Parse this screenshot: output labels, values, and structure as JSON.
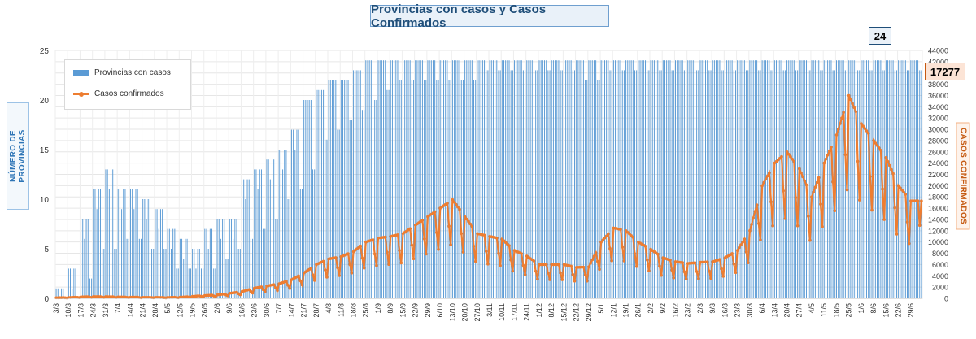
{
  "chart_data": {
    "type": "bar",
    "title": "Provincias con casos y Casos Confirmados",
    "ylabel_left": "NÚMERO DE PROVINCIAS",
    "ylabel_right": "CASOS CONFIRMADOS",
    "ylim_left": [
      0,
      25
    ],
    "ylim_right": [
      0,
      44000
    ],
    "yticks_left": [
      0,
      5,
      10,
      15,
      20,
      25
    ],
    "yticks_right": [
      0,
      2000,
      4000,
      6000,
      8000,
      10000,
      12000,
      14000,
      16000,
      18000,
      20000,
      22000,
      24000,
      26000,
      28000,
      30000,
      32000,
      34000,
      36000,
      38000,
      40000,
      42000,
      44000
    ],
    "x_tick_labels": [
      "3/3",
      "10/3",
      "17/3",
      "24/3",
      "31/3",
      "7/4",
      "14/4",
      "21/4",
      "28/4",
      "5/5",
      "12/5",
      "19/5",
      "26/5",
      "2/6",
      "9/6",
      "16/6",
      "23/6",
      "30/6",
      "7/7",
      "14/7",
      "21/7",
      "28/7",
      "4/8",
      "11/8",
      "18/8",
      "25/8",
      "1/9",
      "8/9",
      "15/9",
      "22/9",
      "29/9",
      "6/10",
      "13/10",
      "20/10",
      "27/10",
      "3/11",
      "10/11",
      "17/11",
      "24/11",
      "1/12",
      "8/12",
      "15/12",
      "22/12",
      "29/12",
      "5/1",
      "12/1",
      "19/1",
      "26/1",
      "2/2",
      "9/2",
      "16/2",
      "23/2",
      "2/3",
      "9/3",
      "16/3",
      "23/3",
      "30/3",
      "6/4",
      "13/4",
      "20/4",
      "27/4",
      "4/5",
      "11/5",
      "18/5",
      "25/5",
      "1/6",
      "8/6",
      "15/6",
      "22/6",
      "29/6"
    ],
    "series": [
      {
        "name": "Provincias con casos",
        "type": "bar",
        "axis": "left",
        "color": "#5b9bd5",
        "weekly_values": [
          1,
          3,
          8,
          11,
          13,
          11,
          11,
          10,
          9,
          7,
          6,
          5,
          7,
          8,
          8,
          12,
          13,
          14,
          15,
          17,
          20,
          21,
          22,
          22,
          23,
          24,
          24,
          24,
          24,
          24,
          24,
          24,
          24,
          24,
          24,
          24,
          24,
          24,
          24,
          24,
          24,
          24,
          24,
          24,
          24,
          24,
          24,
          24,
          24,
          24,
          24,
          24,
          24,
          24,
          24,
          24,
          24,
          24,
          24,
          24,
          24,
          24,
          24,
          24,
          24,
          24,
          24,
          24,
          24,
          24
        ],
        "weekly_dips": [
          0,
          0,
          2,
          5,
          5,
          6,
          6,
          5,
          5,
          3,
          3,
          3,
          3,
          4,
          5,
          6,
          7,
          8,
          10,
          11,
          13,
          16,
          17,
          18,
          19,
          20,
          21,
          22,
          22,
          22,
          22,
          22,
          22,
          22,
          23,
          23,
          23,
          23,
          23,
          23,
          23,
          23,
          22,
          22,
          23,
          23,
          23,
          23,
          23,
          23,
          23,
          23,
          23,
          23,
          23,
          23,
          23,
          23,
          23,
          23,
          23,
          23,
          23,
          23,
          23,
          23,
          23,
          23,
          23,
          23
        ]
      },
      {
        "name": "Casos confirmados",
        "type": "line",
        "axis": "right",
        "color": "#ed7d31",
        "weekly_values": [
          100,
          150,
          250,
          300,
          300,
          250,
          220,
          180,
          170,
          160,
          200,
          350,
          500,
          600,
          900,
          1200,
          1800,
          2200,
          2600,
          3300,
          4500,
          6000,
          7000,
          7400,
          8300,
          10000,
          10700,
          11000,
          11500,
          13000,
          14500,
          16000,
          17500,
          14500,
          11500,
          11000,
          10500,
          8500,
          7500,
          6000,
          6000,
          6000,
          5500,
          5600,
          10000,
          12500,
          12000,
          10000,
          8700,
          7200,
          6500,
          6200,
          6400,
          6500,
          7200,
          8500,
          12000,
          20000,
          24000,
          26000,
          23000,
          18000,
          24000,
          29000,
          36000,
          31000,
          28000,
          25000,
          20000,
          17277
        ],
        "last_value": 17277
      }
    ],
    "legend": [
      "Provincias con casos",
      "Casos confirmados"
    ],
    "legend_position": "top-left",
    "callouts": {
      "provinces_last": "24",
      "cases_last": "17277"
    },
    "grid": true
  }
}
